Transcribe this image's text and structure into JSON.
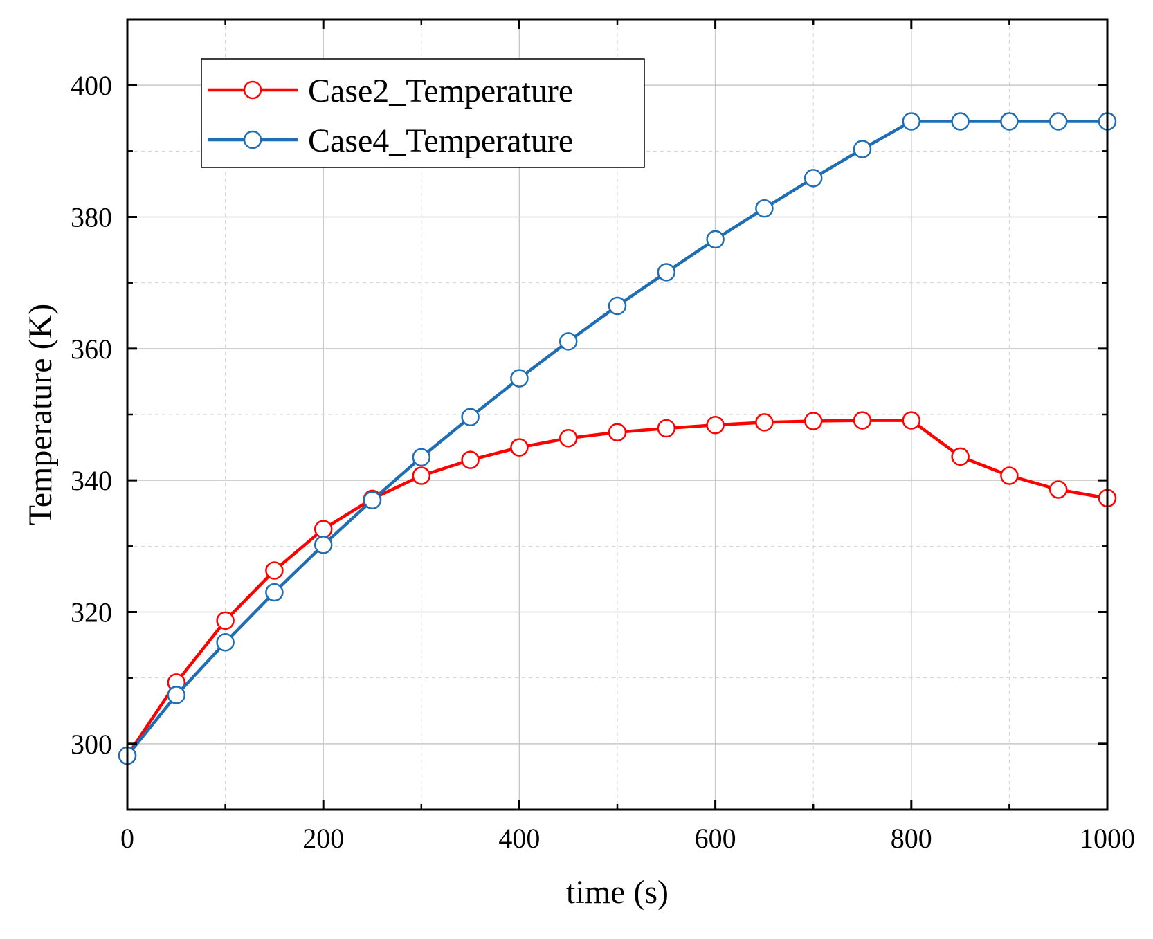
{
  "chart_data": {
    "type": "line",
    "title": "",
    "xlabel": "time (s)",
    "ylabel": "Temperature (K)",
    "xlim": [
      0,
      1000
    ],
    "ylim": [
      290,
      410
    ],
    "x_ticks": [
      0,
      200,
      400,
      600,
      800,
      1000
    ],
    "x_tick_labels": [
      "0",
      "200",
      "400",
      "600",
      "800",
      "1000"
    ],
    "x_minor_ticks": [
      100,
      300,
      500,
      700,
      900
    ],
    "y_ticks": [
      300,
      320,
      340,
      360,
      380,
      400
    ],
    "y_tick_labels": [
      "300",
      "320",
      "340",
      "360",
      "380",
      "400"
    ],
    "y_minor_ticks": [
      310,
      330,
      350,
      370,
      390
    ],
    "grid": true,
    "legend_position": "top-left",
    "x": [
      0,
      50,
      100,
      150,
      200,
      250,
      300,
      350,
      400,
      450,
      500,
      550,
      600,
      650,
      700,
      750,
      800,
      850,
      900,
      950,
      1000
    ],
    "series": [
      {
        "name": "Case2_Temperature",
        "color": "#ff0000",
        "marker": "open-circle",
        "values": [
          298.2,
          309.3,
          318.7,
          326.3,
          332.6,
          337.2,
          340.7,
          343.1,
          345.0,
          346.4,
          347.3,
          347.9,
          348.4,
          348.8,
          349.0,
          349.1,
          349.1,
          343.6,
          340.7,
          338.6,
          337.3
        ]
      },
      {
        "name": "Case4_Temperature",
        "color": "#1f6eb4",
        "marker": "open-circle",
        "values": [
          298.2,
          307.4,
          315.4,
          323.0,
          330.2,
          337.0,
          343.5,
          349.6,
          355.5,
          361.1,
          366.5,
          371.6,
          376.6,
          381.3,
          385.9,
          390.3,
          394.5,
          394.5,
          394.5,
          394.5,
          394.5
        ]
      }
    ]
  }
}
